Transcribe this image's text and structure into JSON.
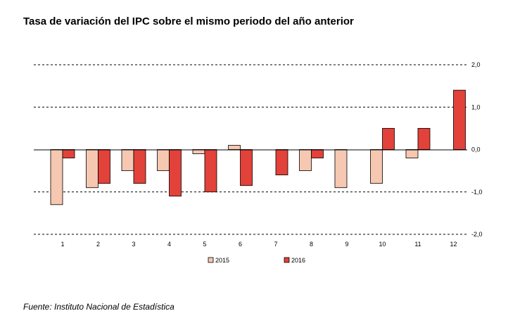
{
  "title": "Tasa de variación del IPC sobre el mismo periodo del año anterior",
  "source": "Fuente: Instituto Nacional de Estadística",
  "colors": {
    "s2015_fill": "#f6c7b1",
    "s2016_fill": "#e2423a",
    "stroke": "#000000",
    "grid": "#000000"
  },
  "chart_data": {
    "type": "bar",
    "title": "Tasa de variación del IPC sobre el mismo periodo del año anterior",
    "xlabel": "",
    "ylabel": "",
    "categories": [
      "1",
      "2",
      "3",
      "4",
      "5",
      "6",
      "7",
      "8",
      "9",
      "10",
      "11",
      "12"
    ],
    "series": [
      {
        "name": "2015",
        "values": [
          -1.3,
          -0.9,
          -0.5,
          -0.5,
          -0.1,
          0.1,
          null,
          -0.5,
          -0.9,
          -0.8,
          -0.2,
          null
        ]
      },
      {
        "name": "2016",
        "values": [
          -0.2,
          -0.8,
          -0.8,
          -1.1,
          -1.0,
          -0.85,
          -0.6,
          -0.2,
          null,
          0.5,
          0.5,
          1.4
        ]
      }
    ],
    "ylim": [
      -2.0,
      2.0
    ],
    "yticks": [
      "2,0",
      "1,0",
      "0,0",
      "-1,0",
      "-2,0"
    ],
    "ytick_values": [
      2.0,
      1.0,
      0.0,
      -1.0,
      -2.0
    ],
    "y_axis_side": "right",
    "grid": "dashed horizontal",
    "legend": "bottom-center"
  }
}
